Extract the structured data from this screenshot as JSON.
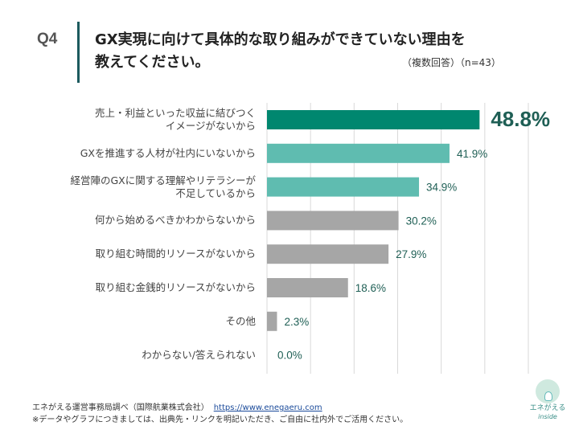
{
  "header": {
    "question": "Q4",
    "title_line1": "GX実現に向けて具体的な取り組みができていない理由を",
    "title_line2": "教えてください。",
    "note": "（複数回答）（n=43）"
  },
  "chart_data": {
    "type": "bar",
    "orientation": "horizontal",
    "categories": [
      "売上・利益といった収益に結びつく\nイメージがないから",
      "GXを推進する人材が社内にいないから",
      "経営陣のGXに関する理解やリテラシーが\n不足しているから",
      "何から始めるべきかわからないから",
      "取り組む時間的リソースがないから",
      "取り組む金銭的リソースがないから",
      "その他",
      "わからない/答えられない"
    ],
    "values": [
      48.8,
      41.9,
      34.9,
      30.2,
      27.9,
      18.6,
      2.3,
      0.0
    ],
    "data_labels": [
      "48.8%",
      "41.9%",
      "34.9%",
      "30.2%",
      "27.9%",
      "18.6%",
      "2.3%",
      "0.0%"
    ],
    "unit": "%",
    "xlim": [
      0,
      60
    ],
    "grid": true,
    "grid_step": 10,
    "bar_colors": [
      "#00876f",
      "#5fbcb0",
      "#5fbcb0",
      "#a6a6a6",
      "#a6a6a6",
      "#a6a6a6",
      "#a6a6a6",
      "#a6a6a6"
    ],
    "label_color": "#1f5f55"
  },
  "footer": {
    "source": "エネがえる運営事務局調べ（国際航業株式会社）",
    "link": "https://www.enegaeru.com",
    "disclaimer": "※データやグラフにつきましては、出典先・リンクを明記いただき、ご自由に社内外でご活用ください。"
  },
  "logo": {
    "name": "エネがえる",
    "sub": "inside"
  }
}
